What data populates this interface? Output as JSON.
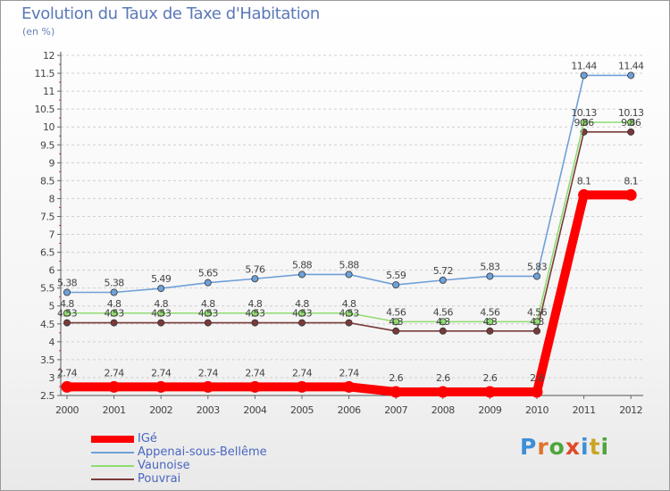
{
  "header": {
    "title": "Evolution du Taux de Taxe d'Habitation",
    "subtitle": "(en %)"
  },
  "logo": {
    "text": "Proxiti",
    "letter_colors": [
      "#3d8fd6",
      "#e2722b",
      "#4ea53c",
      "#e04828",
      "#3d8fd6",
      "#c9a526",
      "#4ea53c"
    ]
  },
  "chart_data": {
    "type": "line",
    "title": "Evolution du Taux de Taxe d'Habitation",
    "subtitle": "(en %)",
    "xlabel": "",
    "ylabel": "",
    "ylim": [
      2.5,
      12
    ],
    "y_ticks": [
      "2.5",
      "3",
      "3.5",
      "4",
      "4.5",
      "5",
      "5.5",
      "6",
      "6.5",
      "7",
      "7.5",
      "8",
      "8.5",
      "9",
      "9.5",
      "10",
      "10.5",
      "11",
      "11.5",
      "12"
    ],
    "categories": [
      "2000",
      "2001",
      "2002",
      "2003",
      "2004",
      "2005",
      "2006",
      "2007",
      "2008",
      "2009",
      "2010",
      "2011",
      "2012"
    ],
    "grid": "horizontal dashed",
    "legend_position": "bottom-left",
    "series": [
      {
        "name": "IGé",
        "color": "#ff0000",
        "values": [
          2.74,
          2.74,
          2.74,
          2.74,
          2.74,
          2.74,
          2.74,
          2.6,
          2.6,
          2.6,
          2.6,
          8.1,
          8.1
        ],
        "labels": [
          "2.74",
          "2.74",
          "2.74",
          "2.74",
          "2.74",
          "2.74",
          "2.74",
          "2.6",
          "2.6",
          "2.6",
          "2.6",
          "8.1",
          "8.1"
        ]
      },
      {
        "name": "Appenai-sous-Bellême",
        "color": "#6fa0d8",
        "values": [
          5.38,
          5.38,
          5.49,
          5.65,
          5.76,
          5.88,
          5.88,
          5.59,
          5.72,
          5.83,
          5.83,
          11.44,
          11.44
        ],
        "labels": [
          "5.38",
          "5.38",
          "5.49",
          "5.65",
          "5.76",
          "5.88",
          "5.88",
          "5.59",
          "5.72",
          "5.83",
          "5.83",
          "11.44",
          "11.44"
        ]
      },
      {
        "name": "Vaunoise",
        "color": "#90dc70",
        "values": [
          4.8,
          4.8,
          4.8,
          4.8,
          4.8,
          4.8,
          4.8,
          4.56,
          4.56,
          4.56,
          4.56,
          10.13,
          10.13
        ],
        "labels": [
          "4.8",
          "4.8",
          "4.8",
          "4.8",
          "4.8",
          "4.8",
          "4.8",
          "4.56",
          "4.56",
          "4.56",
          "4.56",
          "10.13",
          "10.13"
        ]
      },
      {
        "name": "Pouvrai",
        "color": "#7a3a3a",
        "values": [
          4.53,
          4.53,
          4.53,
          4.53,
          4.53,
          4.53,
          4.53,
          4.3,
          4.3,
          4.3,
          4.3,
          9.86,
          9.86
        ],
        "labels": [
          "4.53",
          "4.53",
          "4.53",
          "4.53",
          "4.53",
          "4.53",
          "4.53",
          "4.3",
          "4.3",
          "4.3",
          "4.3",
          "9.86",
          "9.86"
        ]
      }
    ]
  }
}
